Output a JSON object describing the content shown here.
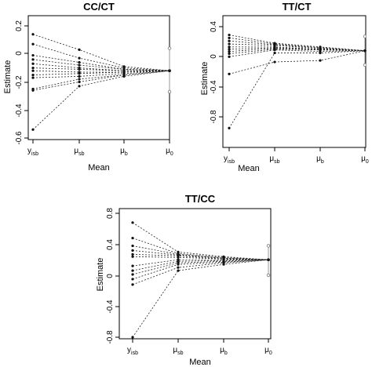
{
  "chart_data": [
    {
      "type": "line",
      "title": "CC/CT",
      "xlabel": "Mean",
      "ylabel": "Estimate",
      "categories": [
        {
          "base": "y",
          "sub": "isb"
        },
        {
          "base": "μ",
          "sub": "sb"
        },
        {
          "base": "μ",
          "sub": "b"
        },
        {
          "base": "μ",
          "sub": "0"
        }
      ],
      "yticks": [
        "0.2",
        "0",
        "-0.2",
        "-0.4",
        "-0.6"
      ],
      "ylim": [
        -0.62,
        0.24
      ],
      "grid": false,
      "series": [
        {
          "values": [
            0.14,
            0.03,
            -0.09,
            -0.12
          ]
        },
        {
          "values": [
            0.07,
            -0.03,
            -0.1,
            -0.12
          ]
        },
        {
          "values": [
            -0.01,
            -0.06,
            -0.11,
            -0.12
          ]
        },
        {
          "values": [
            -0.04,
            -0.08,
            -0.11,
            -0.12
          ]
        },
        {
          "values": [
            -0.07,
            -0.1,
            -0.12,
            -0.12
          ]
        },
        {
          "values": [
            -0.1,
            -0.11,
            -0.12,
            -0.12
          ]
        },
        {
          "values": [
            -0.12,
            -0.13,
            -0.13,
            -0.12
          ]
        },
        {
          "values": [
            -0.15,
            -0.14,
            -0.13,
            -0.12
          ]
        },
        {
          "values": [
            -0.17,
            -0.16,
            -0.14,
            -0.12
          ]
        },
        {
          "values": [
            -0.25,
            -0.18,
            -0.15,
            -0.12
          ]
        },
        {
          "values": [
            -0.26,
            -0.2,
            -0.15,
            -0.12
          ]
        },
        {
          "values": [
            -0.54,
            -0.23,
            -0.16,
            -0.12
          ]
        }
      ],
      "interval": {
        "upper": 0.04,
        "lower": -0.27,
        "estimate": -0.12
      }
    },
    {
      "type": "line",
      "title": "TT/CT",
      "xlabel": "Mean",
      "ylabel": "Estimate",
      "categories": [
        {
          "base": "y",
          "sub": "isb"
        },
        {
          "base": "μ",
          "sub": "sb"
        },
        {
          "base": "μ",
          "sub": "b"
        },
        {
          "base": "μ",
          "sub": "0"
        }
      ],
      "yticks": [
        "0.4",
        "0",
        "-0.4",
        "-0.8"
      ],
      "ylim": [
        -1.0,
        0.44
      ],
      "grid": false,
      "series": [
        {
          "values": [
            0.29,
            0.18,
            0.13,
            0.08
          ]
        },
        {
          "values": [
            0.25,
            0.17,
            0.12,
            0.08
          ]
        },
        {
          "values": [
            0.21,
            0.16,
            0.12,
            0.08
          ]
        },
        {
          "values": [
            0.17,
            0.15,
            0.11,
            0.08
          ]
        },
        {
          "values": [
            0.13,
            0.13,
            0.1,
            0.08
          ]
        },
        {
          "values": [
            0.1,
            0.12,
            0.1,
            0.08
          ]
        },
        {
          "values": [
            0.07,
            0.11,
            0.09,
            0.08
          ]
        },
        {
          "values": [
            0.04,
            0.1,
            0.09,
            0.08
          ]
        },
        {
          "values": [
            0.0,
            0.09,
            0.07,
            0.08
          ]
        },
        {
          "values": [
            -0.23,
            -0.07,
            -0.05,
            0.08
          ]
        },
        {
          "values": [
            -0.95,
            0.05,
            0.05,
            0.08
          ]
        }
      ],
      "interval": {
        "upper": 0.27,
        "lower": -0.11,
        "estimate": 0.08
      }
    },
    {
      "type": "line",
      "title": "TT/CC",
      "xlabel": "Mean",
      "ylabel": "Estimate",
      "categories": [
        {
          "base": "y",
          "sub": "isb"
        },
        {
          "base": "μ",
          "sub": "sb"
        },
        {
          "base": "μ",
          "sub": "b"
        },
        {
          "base": "μ",
          "sub": "0"
        }
      ],
      "yticks": [
        "0.8",
        "0.4",
        "0",
        "-0.4",
        "-0.8"
      ],
      "ylim": [
        -0.9,
        0.85
      ],
      "grid": false,
      "series": [
        {
          "values": [
            0.68,
            0.3,
            0.24,
            0.2
          ]
        },
        {
          "values": [
            0.48,
            0.28,
            0.23,
            0.2
          ]
        },
        {
          "values": [
            0.38,
            0.27,
            0.22,
            0.2
          ]
        },
        {
          "values": [
            0.32,
            0.26,
            0.22,
            0.2
          ]
        },
        {
          "values": [
            0.27,
            0.25,
            0.21,
            0.2
          ]
        },
        {
          "values": [
            0.24,
            0.23,
            0.21,
            0.2
          ]
        },
        {
          "values": [
            0.12,
            0.2,
            0.2,
            0.2
          ]
        },
        {
          "values": [
            0.06,
            0.18,
            0.19,
            0.2
          ]
        },
        {
          "values": [
            0.01,
            0.16,
            0.18,
            0.2
          ]
        },
        {
          "values": [
            -0.05,
            0.14,
            0.17,
            0.2
          ]
        },
        {
          "values": [
            -0.12,
            0.1,
            0.16,
            0.2
          ]
        },
        {
          "values": [
            -0.8,
            0.06,
            0.14,
            0.2
          ]
        }
      ],
      "interval": {
        "upper": 0.38,
        "lower": 0.0,
        "estimate": 0.2
      }
    }
  ]
}
